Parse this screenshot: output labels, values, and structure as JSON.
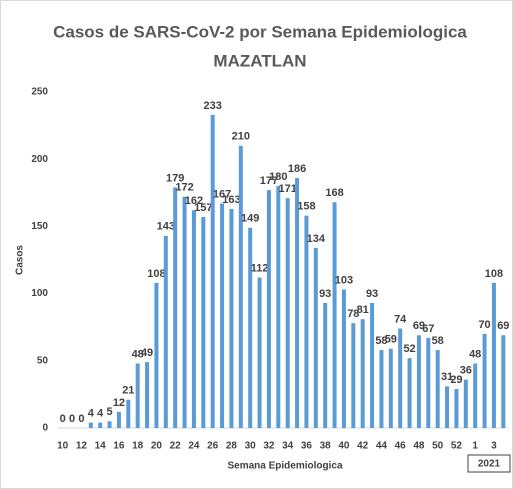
{
  "chart_data": {
    "type": "bar",
    "title": "Casos de SARS-CoV-2 por Semana Epidemiologica",
    "subtitle": "MAZATLAN",
    "x_label": "Semana Epidemiologica",
    "y_label": "Casos",
    "annotation": "2021",
    "categories": [
      "10",
      null,
      "12",
      null,
      "14",
      null,
      "16",
      null,
      "18",
      null,
      "20",
      null,
      "22",
      null,
      "24",
      null,
      "26",
      null,
      "28",
      null,
      "30",
      null,
      "32",
      null,
      "34",
      null,
      "36",
      null,
      "38",
      null,
      "40",
      null,
      "42",
      null,
      "44",
      null,
      "46",
      null,
      "48",
      null,
      "50",
      null,
      "52",
      null,
      "1",
      null,
      "3",
      null
    ],
    "values": [
      0,
      0,
      0,
      4,
      4,
      5,
      12,
      21,
      48,
      49,
      108,
      143,
      179,
      172,
      162,
      157,
      233,
      167,
      163,
      210,
      149,
      112,
      177,
      180,
      171,
      186,
      158,
      134,
      93,
      168,
      103,
      78,
      81,
      93,
      58,
      59,
      74,
      52,
      69,
      67,
      58,
      31,
      29,
      36,
      48,
      70,
      108,
      69
    ],
    "color": "#5b9bd5",
    "ylim": [
      0,
      250
    ],
    "yticks": [
      0,
      50,
      100,
      150,
      200,
      250
    ],
    "grid": false
  }
}
